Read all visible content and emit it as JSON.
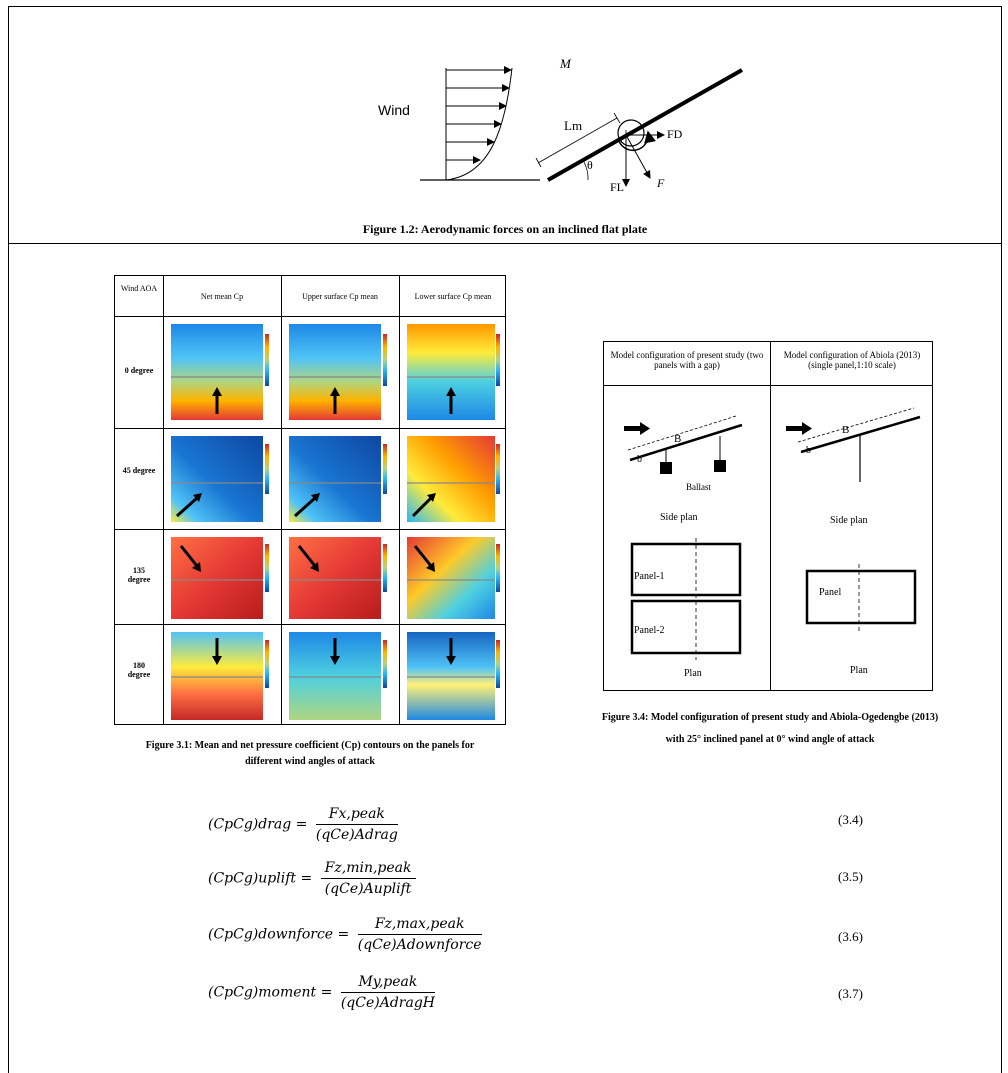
{
  "figure_1_2": {
    "caption": "Figure 1.2: Aerodynamic forces on an inclined flat plate",
    "label_wind": "Wind",
    "label_moment": "M",
    "label_lm": "Lm",
    "label_fd": "FD",
    "label_fl": "FL",
    "label_f": "F",
    "label_theta": "θ"
  },
  "figure_3_1": {
    "header_aoa": "Wind AOA",
    "header_net": "Net mean Cp",
    "header_upper": "Upper surface Cp mean",
    "header_lower": "Lower surface Cp mean",
    "rows": [
      "0 degree",
      "45 degree",
      "135 degree",
      "180 degree"
    ],
    "caption_line1": "Figure 3.1: Mean and net pressure coefficient (Cp) contours on the panels for",
    "caption_line2": "different wind angles of attack"
  },
  "figure_3_4": {
    "col1_header": "Model configuration of present study (two panels with a gap)",
    "col2_header": "Model configuration of Abiola (2013) (single panel,1:10 scale)",
    "label_b_upper": "B",
    "label_b_lower": "b",
    "label_ballast": "Ballast",
    "side_plan": "Side plan",
    "panel1": "Panel-1",
    "panel2": "Panel-2",
    "panel": "Panel",
    "plan": "Plan",
    "caption_line1": "Figure 3.4:  Model configuration of present study and Abiola-Ogedengbe (2013)",
    "caption_line2": "with 25° inclined panel at 0° wind angle of attack"
  },
  "equations": [
    {
      "lhs": "(CpCg)drag",
      "num": "Fx,peak",
      "den": "(qCe)Adrag",
      "number": "(3.4)"
    },
    {
      "lhs": "(CpCg)uplift",
      "num": "Fz,min,peak",
      "den": "(qCe)Auplift",
      "number": "(3.5)"
    },
    {
      "lhs": "(CpCg)downforce",
      "num": "Fz,max,peak",
      "den": "(qCe)Adownforce",
      "number": "(3.6)"
    },
    {
      "lhs": "(CpCg)moment",
      "num": "My,peak",
      "den": "(qCe)AdragH",
      "number": "(3.7)"
    }
  ]
}
